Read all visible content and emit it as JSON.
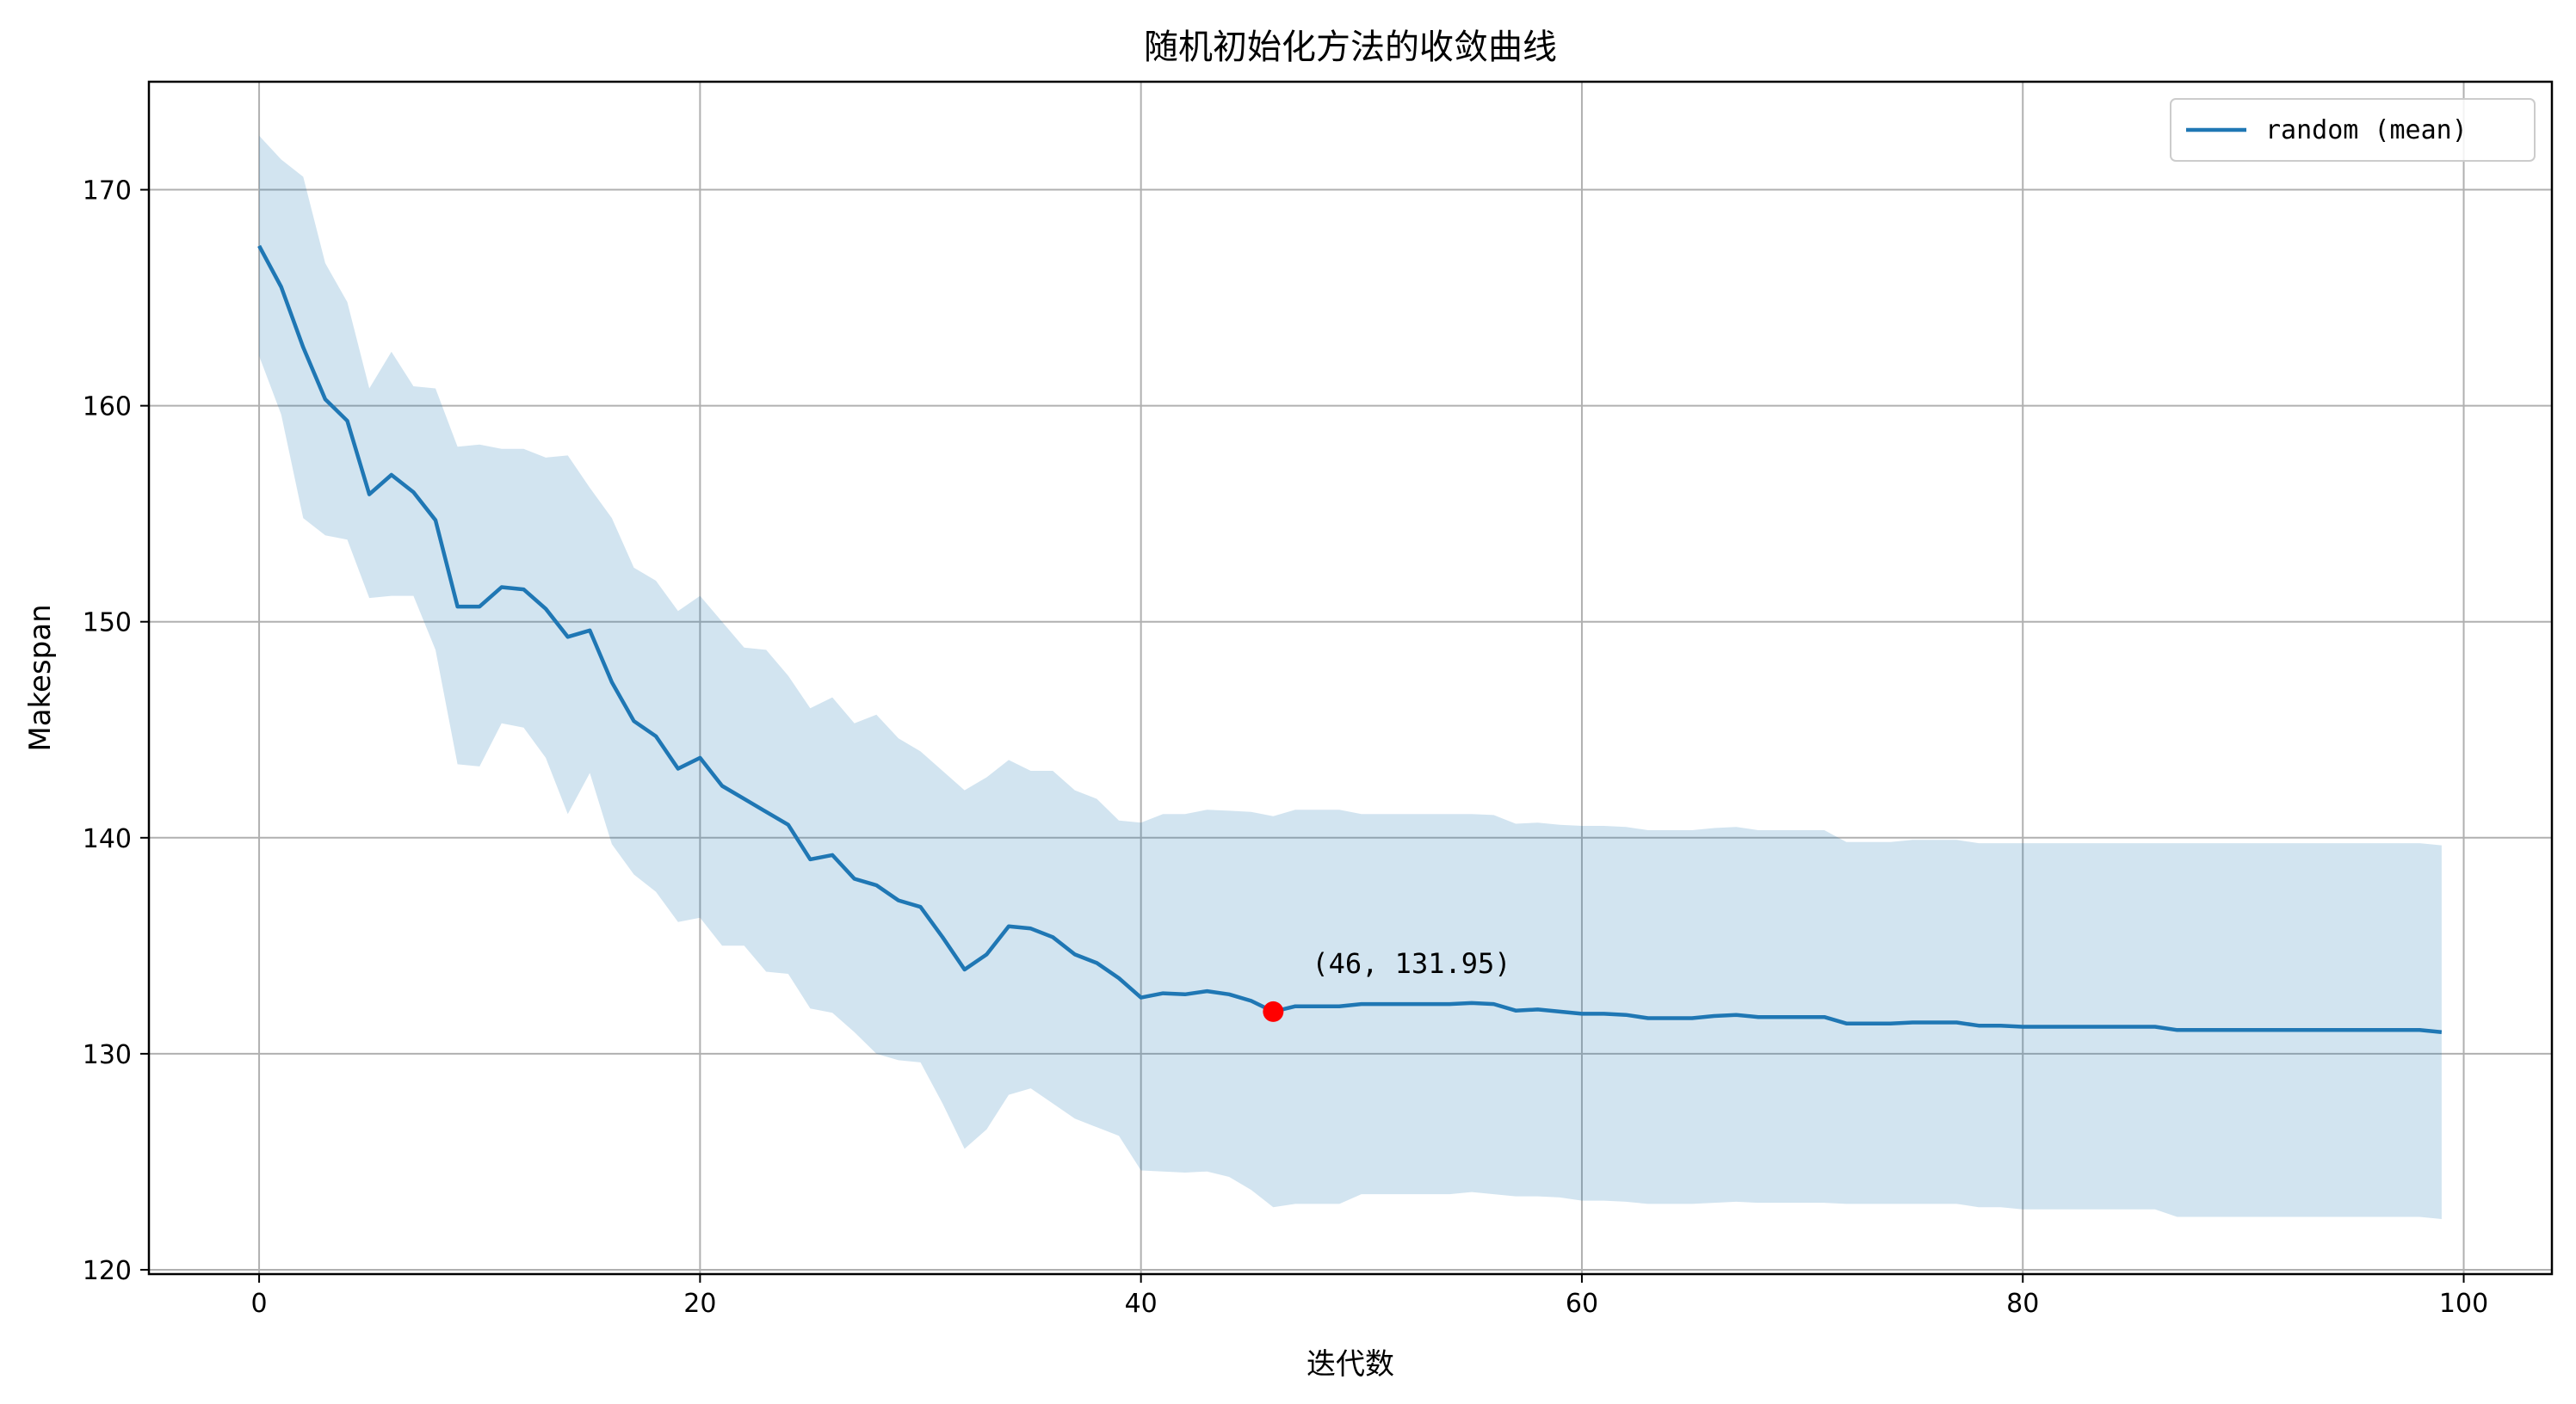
{
  "chart_data": {
    "type": "line",
    "title": "随机初始化方法的收敛曲线",
    "xlabel": "迭代数",
    "ylabel": "Makespan",
    "xlim": [
      -5,
      104
    ],
    "ylim": [
      119.8,
      175
    ],
    "xticks": [
      0,
      20,
      40,
      60,
      80,
      100
    ],
    "yticks": [
      120,
      130,
      140,
      150,
      160,
      170
    ],
    "grid": true,
    "legend_position": "top-right",
    "colors": {
      "line": "#1f77b4",
      "band": "#1f77b4",
      "marker": "#ff0000",
      "grid": "#b0b0b0"
    },
    "series": [
      {
        "name": "random (mean)",
        "x": [
          0,
          1,
          2,
          3,
          4,
          5,
          6,
          7,
          8,
          9,
          10,
          11,
          12,
          13,
          14,
          15,
          16,
          17,
          18,
          19,
          20,
          21,
          22,
          23,
          24,
          25,
          26,
          27,
          28,
          29,
          30,
          31,
          32,
          33,
          34,
          35,
          36,
          37,
          38,
          39,
          40,
          41,
          42,
          43,
          44,
          45,
          46,
          47,
          48,
          49,
          50,
          51,
          52,
          53,
          54,
          55,
          56,
          57,
          58,
          59,
          60,
          61,
          62,
          63,
          64,
          65,
          66,
          67,
          68,
          69,
          70,
          71,
          72,
          73,
          74,
          75,
          76,
          77,
          78,
          79,
          80,
          81,
          82,
          83,
          84,
          85,
          86,
          87,
          88,
          89,
          90,
          91,
          92,
          93,
          94,
          95,
          96,
          97,
          98,
          99
        ],
        "values": [
          167.4,
          165.5,
          162.7,
          160.3,
          159.3,
          155.9,
          156.8,
          156.0,
          154.7,
          150.7,
          150.7,
          151.6,
          151.5,
          150.6,
          149.3,
          149.6,
          147.2,
          145.4,
          144.7,
          143.2,
          143.7,
          142.4,
          141.8,
          141.2,
          140.6,
          139.0,
          139.2,
          138.1,
          137.8,
          137.1,
          136.8,
          135.4,
          133.9,
          134.6,
          135.9,
          135.8,
          135.4,
          134.6,
          134.2,
          133.5,
          132.6,
          132.8,
          132.75,
          132.9,
          132.75,
          132.45,
          131.95,
          132.2,
          132.2,
          132.2,
          132.3,
          132.3,
          132.3,
          132.3,
          132.3,
          132.35,
          132.3,
          132.0,
          132.05,
          131.95,
          131.85,
          131.85,
          131.8,
          131.65,
          131.65,
          131.65,
          131.75,
          131.8,
          131.7,
          131.7,
          131.7,
          131.7,
          131.4,
          131.4,
          131.4,
          131.45,
          131.45,
          131.45,
          131.3,
          131.3,
          131.25,
          131.25,
          131.25,
          131.25,
          131.25,
          131.25,
          131.25,
          131.1,
          131.1,
          131.1,
          131.1,
          131.1,
          131.1,
          131.1,
          131.1,
          131.1,
          131.1,
          131.1,
          131.1,
          131.0
        ],
        "upper": [
          172.5,
          171.4,
          170.6,
          166.6,
          164.8,
          160.8,
          162.5,
          160.9,
          160.8,
          158.1,
          158.2,
          158.0,
          158.0,
          157.6,
          157.7,
          156.2,
          154.8,
          152.5,
          151.9,
          150.5,
          151.2,
          150.0,
          148.8,
          148.7,
          147.5,
          146.0,
          146.5,
          145.3,
          145.7,
          144.6,
          144.0,
          143.1,
          142.2,
          142.8,
          143.6,
          143.1,
          143.1,
          142.2,
          141.8,
          140.8,
          140.7,
          141.1,
          141.1,
          141.3,
          141.25,
          141.2,
          141.0,
          141.3,
          141.3,
          141.3,
          141.1,
          141.1,
          141.1,
          141.1,
          141.1,
          141.1,
          141.05,
          140.65,
          140.7,
          140.6,
          140.55,
          140.55,
          140.5,
          140.35,
          140.35,
          140.35,
          140.45,
          140.5,
          140.35,
          140.35,
          140.35,
          140.35,
          139.8,
          139.8,
          139.8,
          139.9,
          139.9,
          139.9,
          139.75,
          139.75,
          139.75,
          139.75,
          139.75,
          139.75,
          139.75,
          139.75,
          139.75,
          139.75,
          139.75,
          139.75,
          139.75,
          139.75,
          139.75,
          139.75,
          139.75,
          139.75,
          139.75,
          139.75,
          139.75,
          139.65
        ],
        "lower": [
          162.3,
          159.6,
          154.8,
          154.0,
          153.8,
          151.1,
          151.2,
          151.2,
          148.7,
          143.4,
          143.3,
          145.3,
          145.1,
          143.7,
          141.1,
          143.0,
          139.7,
          138.3,
          137.5,
          136.1,
          136.3,
          135.0,
          135.0,
          133.8,
          133.7,
          132.1,
          131.9,
          131.0,
          130.0,
          129.7,
          129.6,
          127.7,
          125.6,
          126.5,
          128.1,
          128.4,
          127.7,
          127.0,
          126.6,
          126.2,
          124.6,
          124.55,
          124.5,
          124.55,
          124.3,
          123.7,
          122.9,
          123.05,
          123.05,
          123.05,
          123.5,
          123.5,
          123.5,
          123.5,
          123.5,
          123.6,
          123.5,
          123.4,
          123.4,
          123.35,
          123.2,
          123.2,
          123.15,
          123.05,
          123.05,
          123.05,
          123.1,
          123.15,
          123.1,
          123.1,
          123.1,
          123.1,
          123.05,
          123.05,
          123.05,
          123.05,
          123.05,
          123.05,
          122.9,
          122.9,
          122.8,
          122.8,
          122.8,
          122.8,
          122.8,
          122.8,
          122.8,
          122.45,
          122.45,
          122.45,
          122.45,
          122.45,
          122.45,
          122.45,
          122.45,
          122.45,
          122.45,
          122.45,
          122.45,
          122.35
        ]
      }
    ],
    "annotation": {
      "x": 46,
      "y": 131.95,
      "text": "(46, 131.95)"
    }
  }
}
